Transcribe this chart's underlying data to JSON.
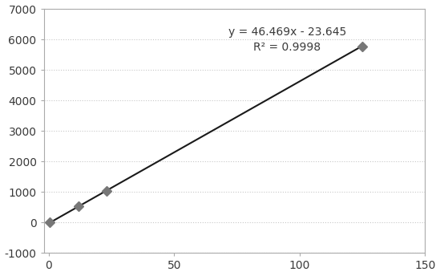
{
  "x_data": [
    0.5,
    12,
    23,
    125
  ],
  "y_data": [
    0,
    534,
    1045,
    5775
  ],
  "slope": 46.469,
  "intercept": -23.645,
  "r_squared": 0.9998,
  "equation_text": "y = 46.469x - 23.645",
  "r2_text": "R² = 0.9998",
  "equation_x": 95,
  "equation_y": 6250,
  "r2_y": 5750,
  "xlim": [
    -2,
    150
  ],
  "ylim": [
    -1000,
    7000
  ],
  "xticks": [
    0,
    50,
    100,
    150
  ],
  "yticks": [
    -1000,
    0,
    1000,
    2000,
    3000,
    4000,
    5000,
    6000,
    7000
  ],
  "marker_color": "#777777",
  "marker_size": 6,
  "line_color": "#1a1a1a",
  "grid_color": "#c8c8c8",
  "bg_color": "#ffffff",
  "font_color": "#3a3a3a",
  "font_size": 10,
  "spine_color": "#aaaaaa",
  "line_width": 1.5
}
